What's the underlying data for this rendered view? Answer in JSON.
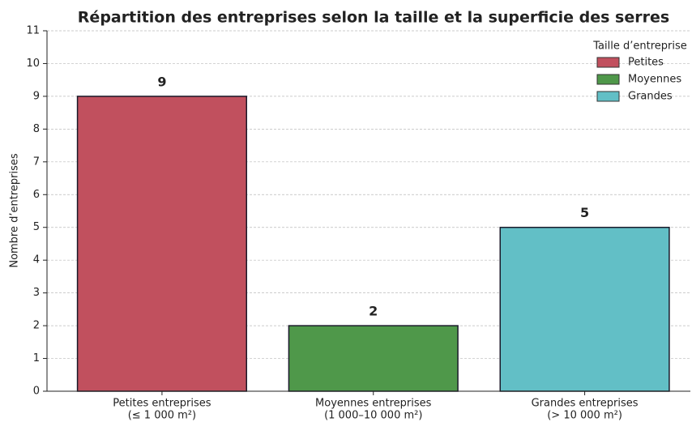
{
  "chart_data": {
    "type": "bar",
    "title": "Répartition des entreprises selon la taille et la superficie des serres",
    "y_label": "Nombre d’entreprises",
    "categories": [
      [
        "Petites entreprises",
        "(≤ 1 000 m²)"
      ],
      [
        "Moyennes entreprises",
        "(1 000–10 000 m²)"
      ],
      [
        "Grandes entreprises",
        "(> 10 000 m²)"
      ]
    ],
    "values": [
      9,
      2,
      5
    ],
    "colors": [
      "#c1505e",
      "#4f984a",
      "#62bfc6"
    ],
    "ylim": [
      0,
      11
    ],
    "yticks": [
      0,
      1,
      2,
      3,
      4,
      5,
      6,
      7,
      8,
      9,
      10,
      11
    ],
    "grid": true,
    "legend": {
      "title": "Taille d’entreprise",
      "entries": [
        "Petites",
        "Moyennes",
        "Grandes"
      ],
      "corner": "upper right"
    }
  }
}
